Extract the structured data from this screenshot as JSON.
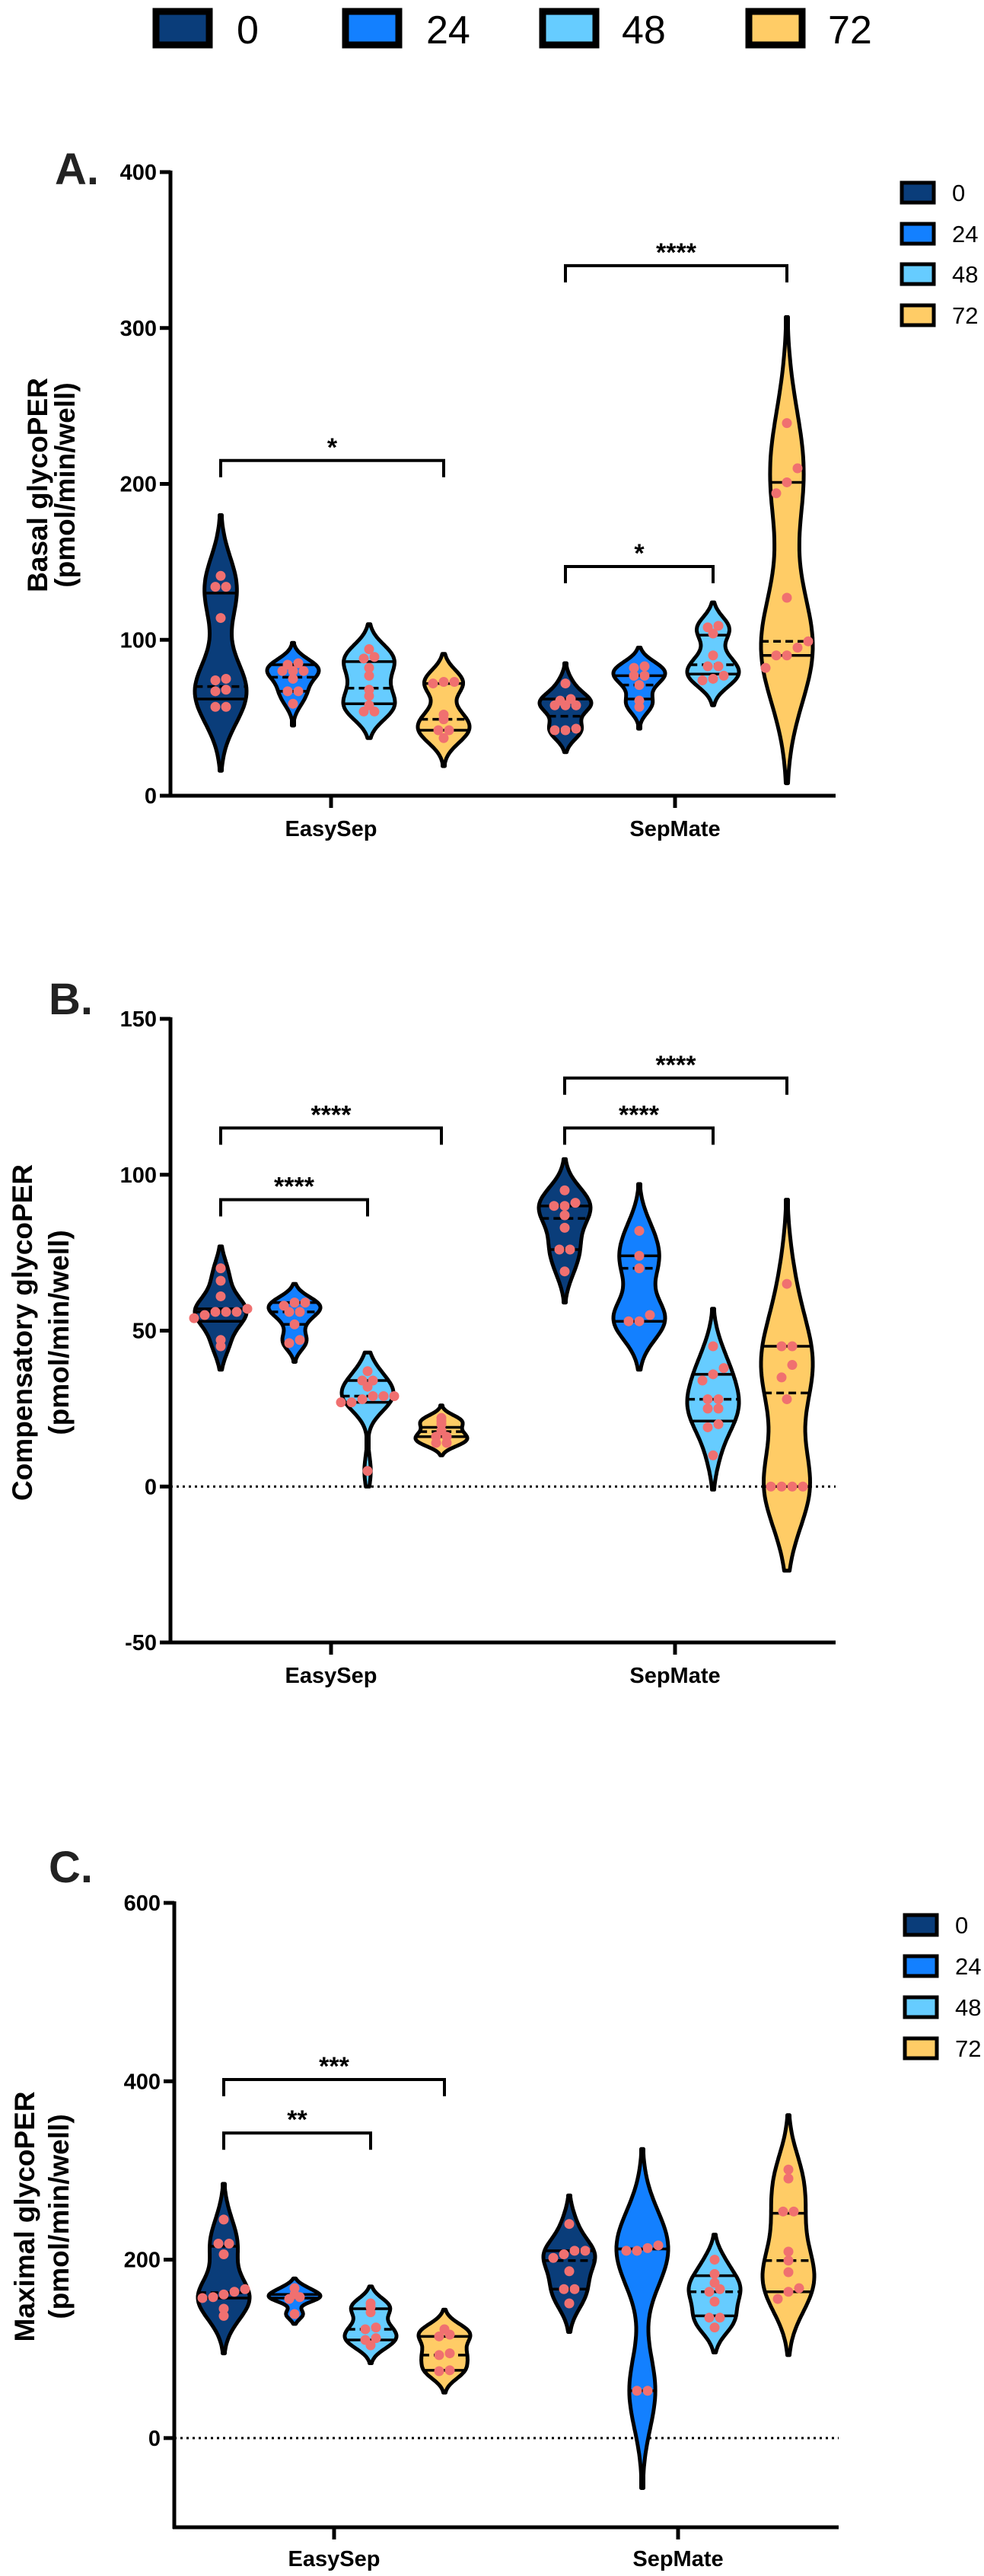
{
  "legend": {
    "items": [
      {
        "label": "0",
        "color": "#0a3d7a"
      },
      {
        "label": "24",
        "color": "#1380ff"
      },
      {
        "label": "48",
        "color": "#66ccff"
      },
      {
        "label": "72",
        "color": "#ffcc66"
      }
    ]
  },
  "point_color": "#f07070",
  "chart_data": [
    {
      "type": "violin",
      "panel_label": "A.",
      "ylabel": [
        "Basal glycoPER",
        "(pmol/min/well)"
      ],
      "categories": [
        "EasySep",
        "SepMate"
      ],
      "series_names": [
        "0",
        "24",
        "48",
        "72"
      ],
      "ylim": [
        0,
        400
      ],
      "yticks": [
        0,
        100,
        200,
        300,
        400
      ],
      "zero_line": false,
      "legend": true,
      "groups": [
        [
          {
            "points": [
              141,
              134,
              134,
              114,
              75,
              74,
              68,
              67,
              57,
              57
            ],
            "q1": 62,
            "median": 70,
            "q3": 130,
            "range": [
              16,
              180
            ]
          },
          {
            "points": [
              85,
              84,
              80,
              80,
              80,
              75,
              67,
              67,
              59
            ],
            "q1": 67,
            "median": 76,
            "q3": 84,
            "range": [
              45,
              98
            ]
          },
          {
            "points": [
              94,
              89,
              88,
              82,
              77,
              68,
              64,
              58,
              54,
              54
            ],
            "q1": 59,
            "median": 69,
            "q3": 86,
            "range": [
              37,
              110
            ]
          },
          {
            "points": [
              73,
              73,
              72,
              52,
              49,
              42,
              42,
              37
            ],
            "q1": 42,
            "median": 49,
            "q3": 72,
            "range": [
              19,
              91
            ]
          }
        ],
        [
          {
            "points": [
              72,
              62,
              61,
              58,
              58,
              58,
              43,
              42,
              42
            ],
            "q1": 42,
            "median": 51,
            "q3": 62,
            "range": [
              28,
              85
            ]
          },
          {
            "points": [
              83,
              82,
              77,
              77,
              71,
              61,
              57
            ],
            "q1": 62,
            "median": 71,
            "q3": 77,
            "range": [
              43,
              95
            ]
          },
          {
            "points": [
              109,
              108,
              104,
              90,
              83,
              83,
              77,
              75,
              74
            ],
            "q1": 78,
            "median": 84,
            "q3": 103,
            "range": [
              58,
              124
            ]
          },
          {
            "points": [
              239,
              210,
              201,
              194,
              127,
              99,
              95,
              90,
              90,
              82
            ],
            "q1": 90,
            "median": 99,
            "q3": 201,
            "range": [
              8,
              307
            ]
          }
        ]
      ],
      "comparisons": [
        {
          "category": 0,
          "from": 0,
          "to": 3,
          "y": 215,
          "label": "*"
        },
        {
          "category": 1,
          "from": 0,
          "to": 3,
          "y": 340,
          "label": "****"
        },
        {
          "category": 1,
          "from": 0,
          "to": 2,
          "y": 147,
          "label": "*"
        }
      ]
    },
    {
      "type": "violin",
      "panel_label": "B.",
      "ylabel": [
        "Compensatory glycoPER",
        "(pmol/min/well)"
      ],
      "categories": [
        "EasySep",
        "SepMate"
      ],
      "series_names": [
        "0",
        "24",
        "48",
        "72"
      ],
      "ylim": [
        -50,
        150
      ],
      "yticks": [
        -50,
        0,
        50,
        100,
        150
      ],
      "zero_line": true,
      "legend": false,
      "groups": [
        [
          {
            "points": [
              70,
              66,
              61,
              57,
              56,
              56,
              56,
              55,
              54,
              47,
              45
            ],
            "q1": 53,
            "median": 56,
            "q3": 57,
            "range": [
              37.5,
              77
            ]
          },
          {
            "points": [
              59,
              59,
              58,
              56,
              56,
              52,
              47,
              46
            ],
            "q1": 52,
            "median": 56,
            "q3": 59,
            "range": [
              40,
              65
            ]
          },
          {
            "points": [
              37,
              34,
              34,
              32,
              29,
              29,
              29,
              28,
              27,
              27,
              5
            ],
            "q1": 27,
            "median": 29,
            "q3": 34,
            "range": [
              0,
              43
            ]
          },
          {
            "points": [
              22,
              21,
              20,
              18,
              16,
              16,
              14,
              14
            ],
            "q1": 16,
            "median": 17.6,
            "q3": 19,
            "range": [
              10,
              26
            ]
          }
        ],
        [
          {
            "points": [
              95,
              91,
              90,
              90,
              87,
              83,
              76,
              76,
              69
            ],
            "q1": 76,
            "median": 86,
            "q3": 90,
            "range": [
              59,
              105
            ]
          },
          {
            "points": [
              82,
              74,
              70,
              55,
              53,
              53
            ],
            "q1": 53,
            "median": 70,
            "q3": 74,
            "range": [
              37.5,
              97
            ]
          },
          {
            "points": [
              45,
              38,
              36,
              34,
              28,
              28,
              25,
              25,
              20,
              19,
              10
            ],
            "q1": 21,
            "median": 28,
            "q3": 36,
            "range": [
              -1,
              57
            ]
          },
          {
            "points": [
              65,
              45,
              45,
              39,
              35,
              28,
              0,
              0,
              0,
              0
            ],
            "q1": 0,
            "median": 30,
            "q3": 45,
            "range": [
              -27,
              92
            ]
          }
        ]
      ],
      "comparisons": [
        {
          "category": 0,
          "from": 0,
          "to": 3,
          "y": 115,
          "label": "****"
        },
        {
          "category": 0,
          "from": 0,
          "to": 2,
          "y": 92,
          "label": "****"
        },
        {
          "category": 1,
          "from": 0,
          "to": 3,
          "y": 131,
          "label": "****"
        },
        {
          "category": 1,
          "from": 0,
          "to": 2,
          "y": 115,
          "label": "****"
        }
      ]
    },
    {
      "type": "violin",
      "panel_label": "C.",
      "ylabel": [
        "Maximal glycoPER",
        "(pmol/min/well)"
      ],
      "categories": [
        "EasySep",
        "SepMate"
      ],
      "series_names": [
        "0",
        "24",
        "48",
        "72"
      ],
      "ylim": [
        -100,
        600
      ],
      "yticks": [
        0,
        200,
        400,
        600
      ],
      "zero_line": true,
      "legend": true,
      "groups": [
        [
          {
            "points": [
              245,
              218,
              218,
              206,
              167,
              164,
              161,
              158,
              157,
              145,
              137
            ],
            "q1": 157,
            "median": 163,
            "q3": 215,
            "range": [
              95,
              285
            ]
          },
          {
            "points": [
              168,
              161,
              158,
              156,
              139
            ],
            "q1": 157,
            "median": 157,
            "q3": 161,
            "range": [
              128,
              179
            ]
          },
          {
            "points": [
              151,
              147,
              141,
              124,
              122,
              112,
              110,
              104
            ],
            "q1": 110,
            "median": 122,
            "q3": 145,
            "range": [
              84,
              170
            ]
          },
          {
            "points": [
              122,
              116,
              114,
              95,
              93,
              76,
              75
            ],
            "q1": 76,
            "median": 93,
            "q3": 114,
            "range": [
              51,
              144
            ]
          }
        ],
        [
          {
            "points": [
              240,
              210,
              210,
              206,
              202,
              187,
              167,
              167,
              151
            ],
            "q1": 167,
            "median": 199,
            "q3": 210,
            "range": [
              119,
              272
            ]
          },
          {
            "points": [
              216,
              213,
              210,
              210,
              53,
              53
            ],
            "q1": 53,
            "median": 212,
            "q3": 212,
            "range": [
              -56,
              324
            ]
          },
          {
            "points": [
              200,
              184,
              174,
              167,
              164,
              153,
              135,
              135,
              124
            ],
            "q1": 137,
            "median": 164,
            "q3": 182,
            "range": [
              96,
              228
            ]
          },
          {
            "points": [
              301,
              291,
              254,
              254,
              209,
              199,
              186,
              168,
              164,
              156
            ],
            "q1": 164,
            "median": 199,
            "q3": 252,
            "range": [
              93,
              362
            ]
          }
        ]
      ],
      "comparisons": [
        {
          "category": 0,
          "from": 0,
          "to": 3,
          "y": 402,
          "label": "***"
        },
        {
          "category": 0,
          "from": 0,
          "to": 2,
          "y": 342,
          "label": "**"
        }
      ]
    }
  ]
}
